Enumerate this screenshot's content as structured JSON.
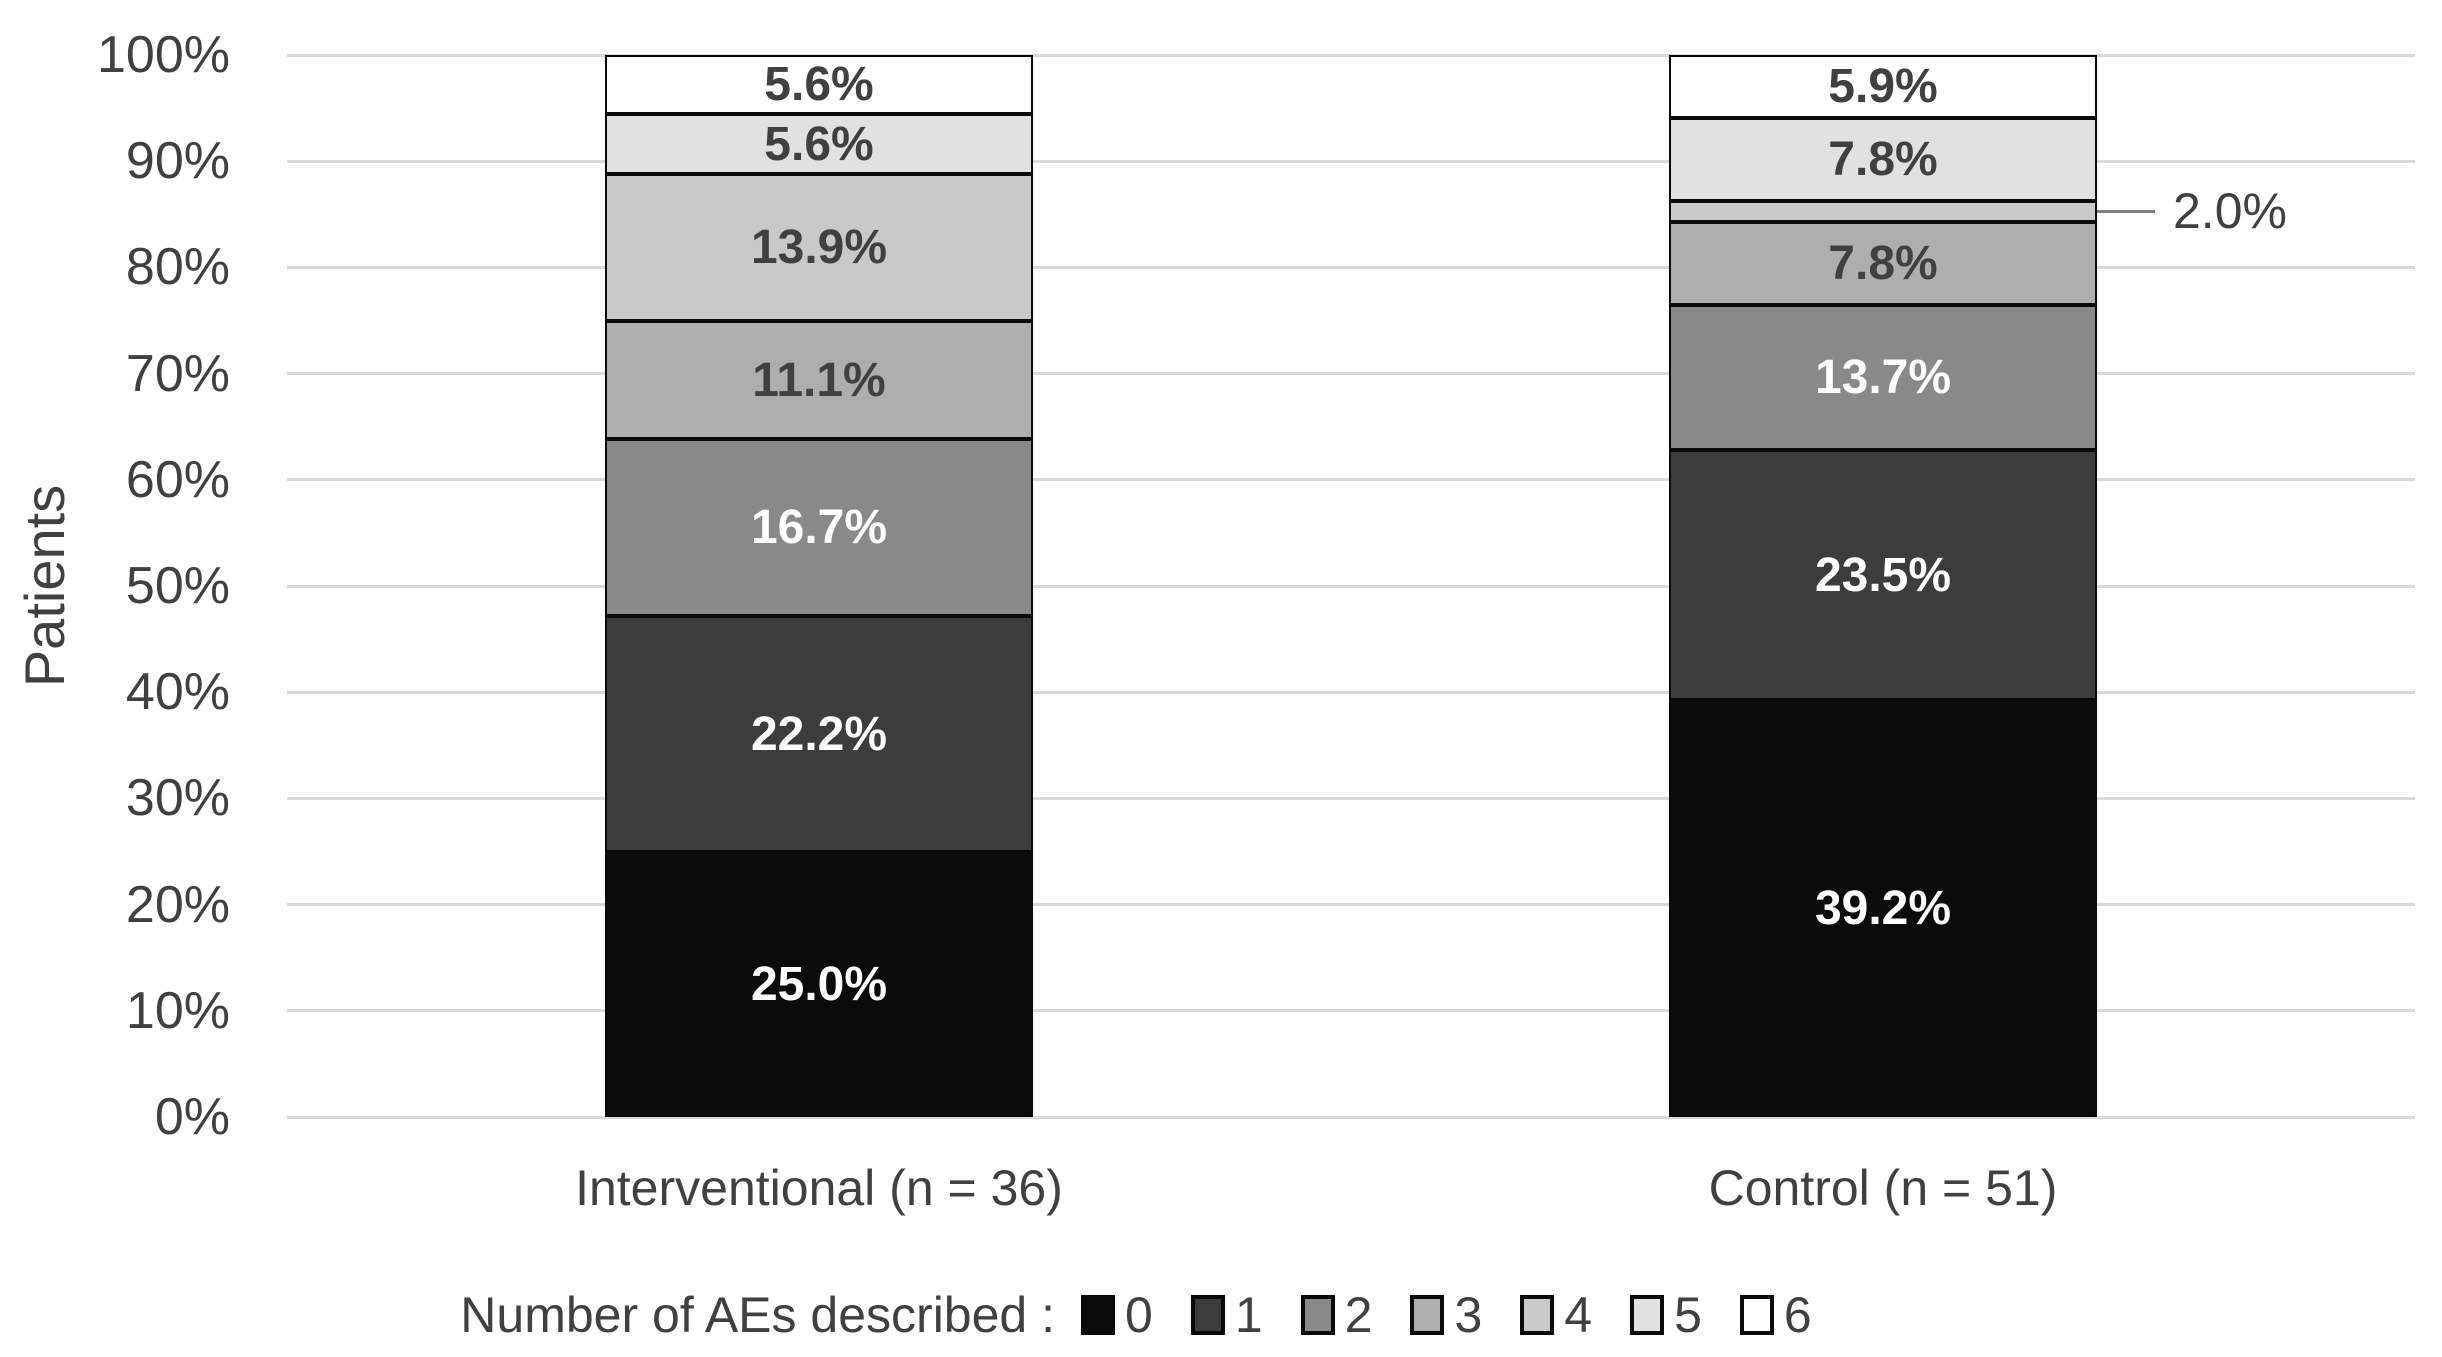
{
  "chart_data": {
    "type": "bar",
    "subtype": "stacked-100-percent",
    "title": "",
    "ylabel": "Patients",
    "xlabel": "",
    "ylim": [
      0,
      100
    ],
    "grid": true,
    "y_ticks": [
      "0%",
      "10%",
      "20%",
      "30%",
      "40%",
      "50%",
      "60%",
      "70%",
      "80%",
      "90%",
      "100%"
    ],
    "categories": [
      "Interventional (n = 36)",
      "Control (n = 51)"
    ],
    "legend_title": "Number of AEs described :",
    "legend_position": "bottom",
    "series": [
      {
        "name": "0",
        "color": "#0b0b0b",
        "label_color": "#ffffff",
        "values": [
          25.0,
          39.2
        ],
        "labels": [
          "25.0%",
          "39.2%"
        ]
      },
      {
        "name": "1",
        "color": "#3c3c3c",
        "label_color": "#ffffff",
        "values": [
          22.2,
          23.5
        ],
        "labels": [
          "22.2%",
          "23.5%"
        ]
      },
      {
        "name": "2",
        "color": "#898989",
        "label_color": "#ffffff",
        "values": [
          16.7,
          13.7
        ],
        "labels": [
          "16.7%",
          "13.7%"
        ]
      },
      {
        "name": "3",
        "color": "#aeaeae",
        "label_color": "#404040",
        "values": [
          11.1,
          7.8
        ],
        "labels": [
          "11.1%",
          "7.8%"
        ]
      },
      {
        "name": "4",
        "color": "#c9c9c9",
        "label_color": "#404040",
        "values": [
          13.9,
          2.0
        ],
        "labels": [
          "13.9%",
          "2.0%"
        ]
      },
      {
        "name": "5",
        "color": "#e1e1e1",
        "label_color": "#404040",
        "values": [
          5.6,
          7.8
        ],
        "labels": [
          "5.6%",
          "7.8%"
        ]
      },
      {
        "name": "6",
        "color": "#ffffff",
        "label_color": "#404040",
        "values": [
          5.6,
          5.9
        ],
        "labels": [
          "5.6%",
          "5.9%"
        ]
      }
    ],
    "callout": {
      "series_name": "4",
      "category_index": 1,
      "text": "2.0%"
    },
    "colors": {
      "grid": "#d9d9d9",
      "axis_text": "#404040",
      "segment_border": "#0a0a0a",
      "leader_line": "#808080",
      "background": "#ffffff"
    }
  }
}
